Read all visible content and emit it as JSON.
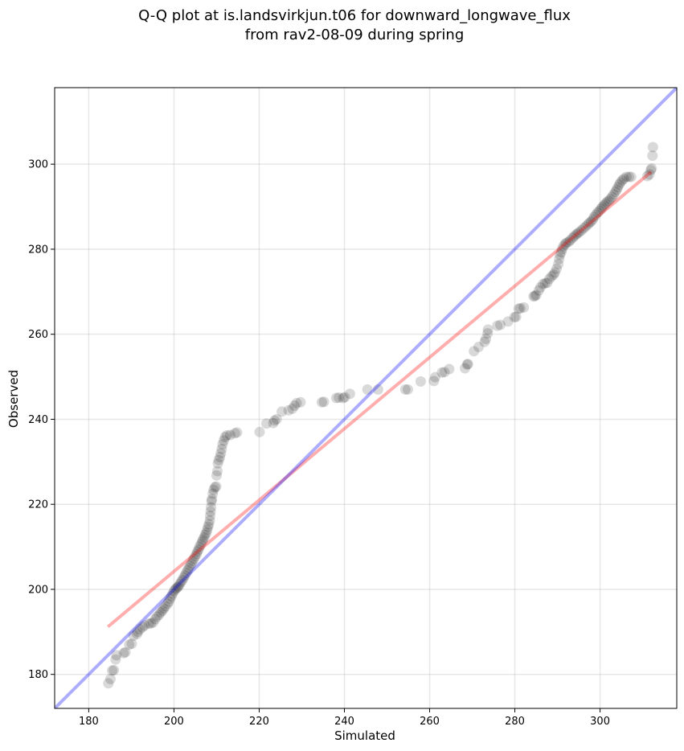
{
  "chart_data": {
    "type": "scatter",
    "title_lines": [
      "Q-Q plot at is.landsvirkjun.t06 for downward_longwave_flux",
      "from rav2-08-09 during spring"
    ],
    "xlabel": "Simulated",
    "ylabel": "Observed",
    "xlim": [
      172,
      318
    ],
    "ylim": [
      172,
      318
    ],
    "x_ticks": [
      180,
      200,
      220,
      240,
      260,
      280,
      300
    ],
    "y_ticks": [
      180,
      200,
      220,
      240,
      260,
      280,
      300
    ],
    "grid": true,
    "point_color": "#000000",
    "point_alpha": 0.15,
    "identity_line": {
      "color": "#0000ff",
      "from": [
        172,
        172
      ],
      "to": [
        318,
        318
      ]
    },
    "fit_line": {
      "color": "#ff0000",
      "from": [
        184.5,
        191.2
      ],
      "to": [
        312,
        298.2
      ]
    },
    "points": [
      [
        184.6,
        177.9
      ],
      [
        185.1,
        178.9
      ],
      [
        185.5,
        180.9
      ],
      [
        185.9,
        181.0
      ],
      [
        186.3,
        183.5
      ],
      [
        186.5,
        184.5
      ],
      [
        188.2,
        185.0
      ],
      [
        188.6,
        185.2
      ],
      [
        189.5,
        187.0
      ],
      [
        190.1,
        187.2
      ],
      [
        190.5,
        189.1
      ],
      [
        191.3,
        189.5
      ],
      [
        191.5,
        190.0
      ],
      [
        192.0,
        190.6
      ],
      [
        192.6,
        191.1
      ],
      [
        193.1,
        191.5
      ],
      [
        194.1,
        191.9
      ],
      [
        194.6,
        192.0
      ],
      [
        195.1,
        192.2
      ],
      [
        195.6,
        193.0
      ],
      [
        196.0,
        193.6
      ],
      [
        196.5,
        194.0
      ],
      [
        196.9,
        194.6
      ],
      [
        197.3,
        195.0
      ],
      [
        197.6,
        195.5
      ],
      [
        198.0,
        196.0
      ],
      [
        198.5,
        196.6
      ],
      [
        198.8,
        197.1
      ],
      [
        199.1,
        197.8
      ],
      [
        199.4,
        198.4
      ],
      [
        199.7,
        199.0
      ],
      [
        200.0,
        199.6
      ],
      [
        200.3,
        200.0
      ],
      [
        200.6,
        200.3
      ],
      [
        200.9,
        200.5
      ],
      [
        201.1,
        200.8
      ],
      [
        201.4,
        201.3
      ],
      [
        201.7,
        201.8
      ],
      [
        202.0,
        202.2
      ],
      [
        202.3,
        202.8
      ],
      [
        202.6,
        203.3
      ],
      [
        202.9,
        203.9
      ],
      [
        203.2,
        204.5
      ],
      [
        203.5,
        205.0
      ],
      [
        203.8,
        205.6
      ],
      [
        204.1,
        206.1
      ],
      [
        204.4,
        206.7
      ],
      [
        204.7,
        207.2
      ],
      [
        205.0,
        207.8
      ],
      [
        205.3,
        208.3
      ],
      [
        205.5,
        208.9
      ],
      [
        205.8,
        209.4
      ],
      [
        206.0,
        210.0
      ],
      [
        206.3,
        210.6
      ],
      [
        206.6,
        211.2
      ],
      [
        206.8,
        211.7
      ],
      [
        207.1,
        212.2
      ],
      [
        207.3,
        212.8
      ],
      [
        207.6,
        213.3
      ],
      [
        207.8,
        214.0
      ],
      [
        208.0,
        214.7
      ],
      [
        208.2,
        215.3
      ],
      [
        208.4,
        216.2
      ],
      [
        208.5,
        217.3
      ],
      [
        208.6,
        218.3
      ],
      [
        208.7,
        219.3
      ],
      [
        208.8,
        220.7
      ],
      [
        208.9,
        221.2
      ],
      [
        209.1,
        222.5
      ],
      [
        209.3,
        223.4
      ],
      [
        209.6,
        224.0
      ],
      [
        209.9,
        224.2
      ],
      [
        210.0,
        226.8
      ],
      [
        210.2,
        227.8
      ],
      [
        210.3,
        229.6
      ],
      [
        210.5,
        230.4
      ],
      [
        210.8,
        231.1
      ],
      [
        211.0,
        232.0
      ],
      [
        211.2,
        233.0
      ],
      [
        211.4,
        234.1
      ],
      [
        211.7,
        235.0
      ],
      [
        212.0,
        235.8
      ],
      [
        212.4,
        236.2
      ],
      [
        213.2,
        236.3
      ],
      [
        214.3,
        236.7
      ],
      [
        214.8,
        236.9
      ],
      [
        220.1,
        237.0
      ],
      [
        221.7,
        239.0
      ],
      [
        223.3,
        239.1
      ],
      [
        223.6,
        239.7
      ],
      [
        224.1,
        240.0
      ],
      [
        225.3,
        241.8
      ],
      [
        226.9,
        242.1
      ],
      [
        227.8,
        242.5
      ],
      [
        228.3,
        243.2
      ],
      [
        228.8,
        243.8
      ],
      [
        229.7,
        244.0
      ],
      [
        234.7,
        244.0
      ],
      [
        235.2,
        244.1
      ],
      [
        238.1,
        245.0
      ],
      [
        238.7,
        245.1
      ],
      [
        239.7,
        245.0
      ],
      [
        240.1,
        245.2
      ],
      [
        241.3,
        246.0
      ],
      [
        245.4,
        247.0
      ],
      [
        247.9,
        247.0
      ],
      [
        254.3,
        247.0
      ],
      [
        254.9,
        247.0
      ],
      [
        257.9,
        248.9
      ],
      [
        261.0,
        249.0
      ],
      [
        261.3,
        249.9
      ],
      [
        262.9,
        251.0
      ],
      [
        263.5,
        251.1
      ],
      [
        264.6,
        251.8
      ],
      [
        268.3,
        252.0
      ],
      [
        268.8,
        252.9
      ],
      [
        269.0,
        253.0
      ],
      [
        270.4,
        256.0
      ],
      [
        271.5,
        257.0
      ],
      [
        272.9,
        258.2
      ],
      [
        273.2,
        258.9
      ],
      [
        273.6,
        260.2
      ],
      [
        273.7,
        261.1
      ],
      [
        275.9,
        262.0
      ],
      [
        276.6,
        262.2
      ],
      [
        278.4,
        263.0
      ],
      [
        279.9,
        264.0
      ],
      [
        280.3,
        264.1
      ],
      [
        280.9,
        266.0
      ],
      [
        281.3,
        266.1
      ],
      [
        282.1,
        266.3
      ],
      [
        284.4,
        268.9
      ],
      [
        284.7,
        269.0
      ],
      [
        285.0,
        269.2
      ],
      [
        285.6,
        270.3
      ],
      [
        286.0,
        271.0
      ],
      [
        286.6,
        271.8
      ],
      [
        287.1,
        272.0
      ],
      [
        287.6,
        272.1
      ],
      [
        288.1,
        273.0
      ],
      [
        288.6,
        273.6
      ],
      [
        289.1,
        274.0
      ],
      [
        289.4,
        274.5
      ],
      [
        289.8,
        275.4
      ],
      [
        290.2,
        276.5
      ],
      [
        290.4,
        277.7
      ],
      [
        290.6,
        278.7
      ],
      [
        290.9,
        279.3
      ],
      [
        291.1,
        280.0
      ],
      [
        291.4,
        280.7
      ],
      [
        291.8,
        281.2
      ],
      [
        292.1,
        281.5
      ],
      [
        292.6,
        281.7
      ],
      [
        293.0,
        282.1
      ],
      [
        293.5,
        282.6
      ],
      [
        293.9,
        283.0
      ],
      [
        294.3,
        283.4
      ],
      [
        294.7,
        283.7
      ],
      [
        295.1,
        284.0
      ],
      [
        295.6,
        284.4
      ],
      [
        296.1,
        284.9
      ],
      [
        296.6,
        285.3
      ],
      [
        297.1,
        285.8
      ],
      [
        297.5,
        286.2
      ],
      [
        297.9,
        286.5
      ],
      [
        298.3,
        287.0
      ],
      [
        298.6,
        287.6
      ],
      [
        299.0,
        288.1
      ],
      [
        299.4,
        288.6
      ],
      [
        299.8,
        289.0
      ],
      [
        300.2,
        289.5
      ],
      [
        300.5,
        289.9
      ],
      [
        300.9,
        290.3
      ],
      [
        301.2,
        290.7
      ],
      [
        301.6,
        291.1
      ],
      [
        302.0,
        291.4
      ],
      [
        302.4,
        291.8
      ],
      [
        302.8,
        292.3
      ],
      [
        303.2,
        292.9
      ],
      [
        303.6,
        293.5
      ],
      [
        303.9,
        294.0
      ],
      [
        304.2,
        294.6
      ],
      [
        304.5,
        295.2
      ],
      [
        304.8,
        295.7
      ],
      [
        305.2,
        296.2
      ],
      [
        305.6,
        296.6
      ],
      [
        306.2,
        297.0
      ],
      [
        306.8,
        297.0
      ],
      [
        307.3,
        297.0
      ],
      [
        311.1,
        297.2
      ],
      [
        311.6,
        297.6
      ],
      [
        311.9,
        298.6
      ],
      [
        312.1,
        299.0
      ],
      [
        312.3,
        302.0
      ],
      [
        312.4,
        304.0
      ]
    ]
  }
}
